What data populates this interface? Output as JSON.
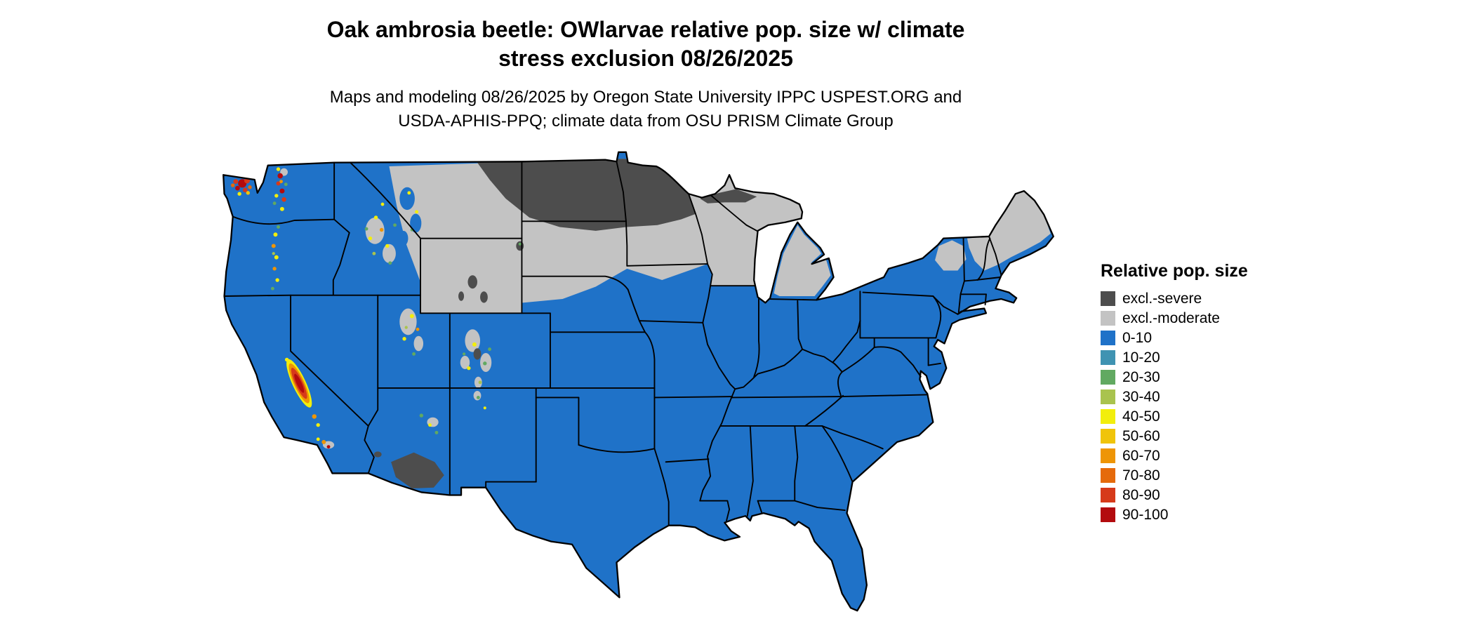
{
  "header": {
    "title_line1": "Oak ambrosia beetle: OWlarvae relative pop. size w/ climate",
    "title_line2": "stress exclusion 08/26/2025",
    "subtitle_line1": "Maps and modeling 08/26/2025 by Oregon State University IPPC USPEST.ORG and",
    "subtitle_line2": "USDA-APHIS-PPQ; climate data from OSU PRISM Climate Group"
  },
  "legend": {
    "title": "Relative pop. size",
    "items": [
      {
        "label": "excl.-severe",
        "color": "#4d4d4d"
      },
      {
        "label": "excl.-moderate",
        "color": "#c3c3c3"
      },
      {
        "label": "0-10",
        "color": "#1f72c8"
      },
      {
        "label": "10-20",
        "color": "#3f93b2"
      },
      {
        "label": "20-30",
        "color": "#61a961"
      },
      {
        "label": "30-40",
        "color": "#a9c34e"
      },
      {
        "label": "40-50",
        "color": "#f2ee0c"
      },
      {
        "label": "50-60",
        "color": "#f0c40a"
      },
      {
        "label": "60-70",
        "color": "#ee9506"
      },
      {
        "label": "70-80",
        "color": "#e56a0b"
      },
      {
        "label": "80-90",
        "color": "#d63a1a"
      },
      {
        "label": "90-100",
        "color": "#b30b0e"
      }
    ]
  },
  "map": {
    "background_color": "#ffffff",
    "border_color": "#000000"
  }
}
